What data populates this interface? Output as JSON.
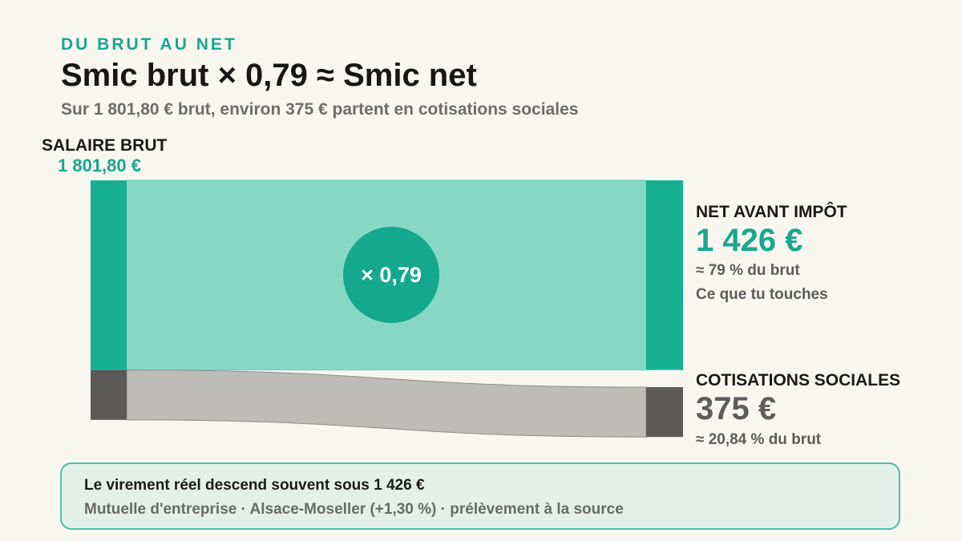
{
  "header": {
    "eyebrow": "DU BRUT AU NET",
    "title": "Smic brut × 0,79 ≈ Smic net",
    "subtitle": "Sur 1 801,80 € brut, environ 375 € partent en cotisations sociales"
  },
  "diagram": {
    "type": "sankey",
    "source": {
      "title": "SALAIRE BRUT",
      "value_text": "1 801,80 €",
      "value": 1801.8
    },
    "multiplier": "× 0,79",
    "flows": [
      {
        "key": "net",
        "title": "NET AVANT IMPÔT",
        "value_text": "1 426 €",
        "value": 1426,
        "notes": [
          "≈ 79 % du brut",
          "Ce que tu touches"
        ],
        "color_node": "#16b08f",
        "color_flow": "#86d8c4"
      },
      {
        "key": "cotisations",
        "title": "COTISATIONS SOCIALES",
        "value_text": "375 €",
        "value": 375,
        "notes": [
          "≈ 20,84 % du brut"
        ],
        "color_node": "#5b5a58",
        "color_flow": "#bdbcb8"
      }
    ]
  },
  "footer": {
    "main": "Le virement réel descend souvent sous 1 426 €",
    "sub": "Mutuelle d'entreprise · Alsace-Moseller (+1,30 %) · prélèvement à la source"
  },
  "colors": {
    "accent": "#18a88d",
    "background": "#f7f6f1",
    "note_bg": "#e3f0ea",
    "note_border": "#4fbea7"
  }
}
